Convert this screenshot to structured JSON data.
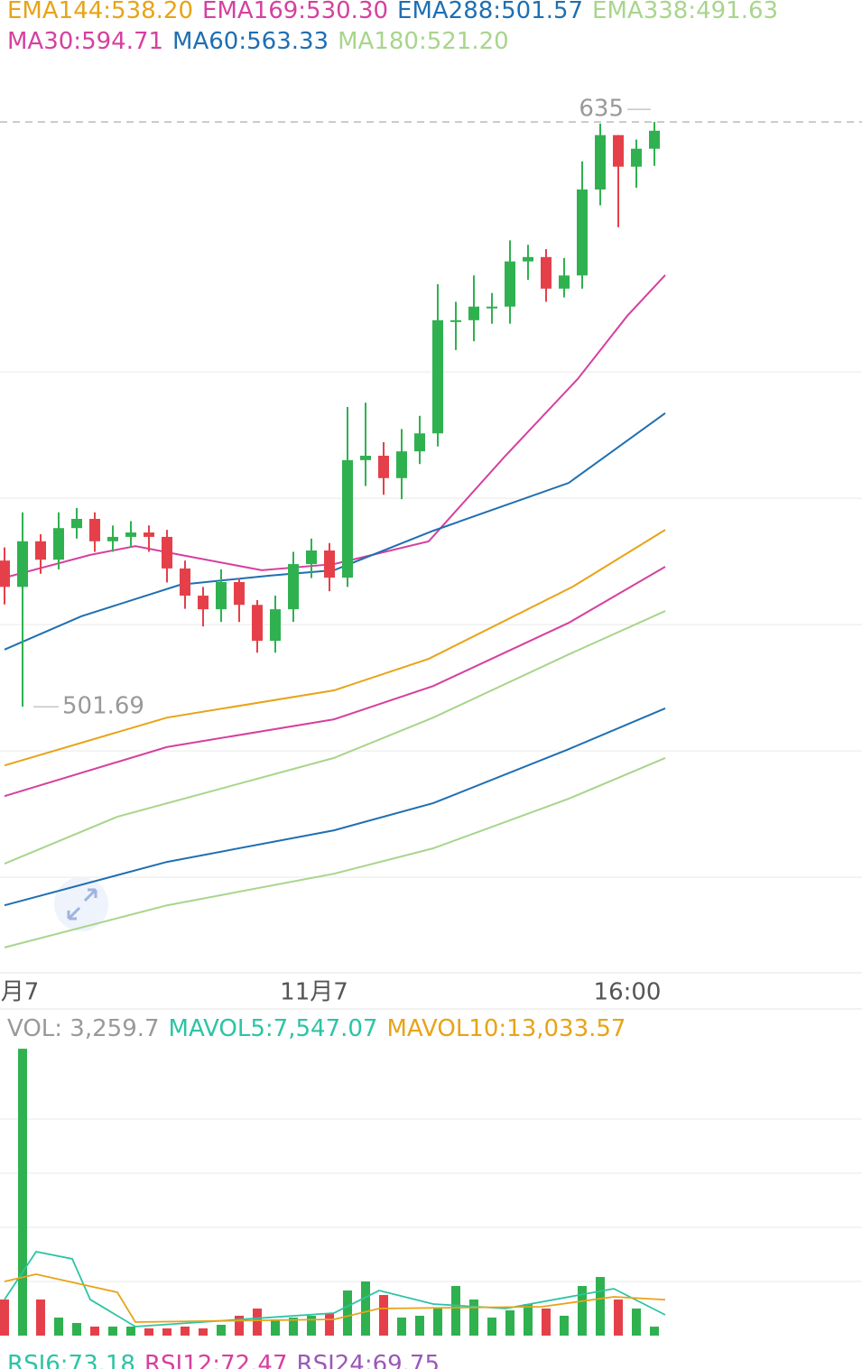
{
  "chart_data": {
    "type": "candlestick",
    "up_color": "#2fb150",
    "down_color": "#e5404a",
    "ylim": [
      440.6,
      648.4
    ],
    "ygrid": [
      578,
      549.2,
      520.4,
      491.6,
      462.8
    ],
    "xlim": [
      -0.25,
      47.5
    ],
    "xticks": [
      {
        "value": 0.85,
        "label": "月7"
      },
      {
        "value": 17.15,
        "label": "11月7"
      },
      {
        "value": 34.5,
        "label": "16:00"
      }
    ],
    "open": [
      535,
      529,
      539.4,
      535.2,
      542.4,
      544.5,
      539.4,
      540.4,
      541.4,
      540.4,
      533.2,
      527,
      523.9,
      530.1,
      524.9,
      516.7,
      523.9,
      534.2,
      537.3,
      531.1,
      557.9,
      558.9,
      553.8,
      559.9,
      564,
      589.8,
      589.8,
      592.9,
      592.9,
      603.2,
      604.2,
      597,
      600,
      619.6,
      632,
      624.8,
      628.9
    ],
    "high": [
      538,
      546,
      541,
      546,
      547,
      546,
      543,
      544,
      543,
      542,
      535,
      529,
      533,
      531,
      526,
      527,
      537,
      540,
      539,
      570,
      571,
      562,
      565,
      568,
      598,
      594,
      600,
      596,
      608,
      607,
      606,
      604,
      626,
      634.63,
      632,
      631,
      635
    ],
    "low": [
      525,
      501.69,
      532,
      533,
      540,
      537,
      537,
      538,
      537,
      530,
      524,
      520,
      521,
      521,
      514,
      514,
      521,
      531,
      528,
      529,
      552,
      550,
      549,
      557,
      561,
      583,
      585,
      589,
      589,
      599,
      594,
      595,
      597,
      616,
      611,
      620,
      625
    ],
    "close": [
      529,
      539.4,
      535.2,
      542.4,
      544.5,
      539.4,
      540.4,
      541.4,
      540.4,
      533.2,
      527,
      523.9,
      530.1,
      524.9,
      516.7,
      523.9,
      534.2,
      537.3,
      531.1,
      557.9,
      558.9,
      553.8,
      559.9,
      564,
      589.8,
      589.8,
      592.9,
      592.9,
      603.2,
      604.2,
      597,
      600,
      619.6,
      632,
      624.8,
      628.9,
      633
    ],
    "lines": [
      {
        "label": "EMA144:538.20",
        "color": "#e8a317",
        "x": [
          0,
          9,
          18.25,
          23.5,
          31.5,
          36.6
        ],
        "values": [
          488.3,
          499.2,
          505.4,
          512.6,
          529.1,
          542.0
        ]
      },
      {
        "label": "EMA169:530.30",
        "color": "#d6409f",
        "x": [
          0,
          9,
          18.25,
          23.75,
          31.25,
          36.6
        ],
        "values": [
          481.3,
          492.5,
          498.8,
          506.4,
          520.8,
          533.6
        ]
      },
      {
        "label": "EMA288:501.57",
        "color": "#1f6fb2",
        "x": [
          0,
          9,
          18.25,
          23.75,
          31.25,
          36.6
        ],
        "values": [
          456.4,
          466.3,
          473.5,
          479.7,
          492.0,
          501.3
        ]
      },
      {
        "label": "EMA338:491.63",
        "color": "#a8d58c",
        "x": [
          0,
          6.25,
          18.25,
          23.75,
          31.25,
          36.6
        ],
        "values": [
          465.9,
          476.6,
          490.0,
          499.2,
          513.6,
          523.5
        ]
      },
      {
        "label": "MA30:594.71",
        "color": "#d6409f",
        "x": [
          0,
          4.75,
          7.25,
          9.75,
          14.25,
          18.25,
          23.5,
          27.75,
          31.75,
          34.5,
          36.6
        ],
        "values": [
          531.1,
          536.3,
          538.3,
          536.3,
          532.8,
          534.2,
          539.4,
          558.9,
          576.4,
          590.8,
          600.1
        ]
      },
      {
        "label": "MA60:563.33",
        "color": "#1f6fb2",
        "x": [
          0,
          4.25,
          9.75,
          14.75,
          18.25,
          23.75,
          31.25,
          36.6
        ],
        "values": [
          514.7,
          522.3,
          529.5,
          531.6,
          532.8,
          541.8,
          552.7,
          568.6
        ]
      },
      {
        "label": "MA180:521.20",
        "color": "#a8d58c",
        "x": [
          0,
          9,
          18.25,
          23.75,
          31.25,
          36.6
        ],
        "values": [
          446.8,
          456.4,
          463.6,
          469.4,
          480.7,
          490.0
        ]
      }
    ],
    "volume": {
      "label": "VOL: 3,259.7",
      "vlim": [
        0,
        105000
      ],
      "vgrid": [
        78750,
        59062.5,
        39375,
        19687.5
      ],
      "values": [
        13120,
        104300,
        13120,
        6560,
        4590,
        3280,
        3280,
        3280,
        2620,
        2620,
        3280,
        2620,
        3940,
        7220,
        9840,
        5900,
        6560,
        7220,
        8200,
        16400,
        19680,
        14760,
        6560,
        7220,
        9840,
        18040,
        13120,
        6560,
        9180,
        11480,
        9840,
        7220,
        18040,
        21320,
        13120,
        9840,
        3259.7
      ],
      "lines": [
        {
          "label": "MAVOL5:7,547.07",
          "color": "#2cc4a4",
          "x": [
            0,
            1.75,
            3.75,
            4.75,
            7.25,
            18.25,
            20.75,
            23.75,
            27.75,
            33.75,
            36.6
          ],
          "values": [
            13120,
            30500,
            27900,
            13100,
            3280,
            8200,
            16400,
            11480,
            9840,
            17060,
            7547.07
          ]
        },
        {
          "label": "MAVOL10:13,033.57",
          "color": "#e8a317",
          "x": [
            0,
            1.75,
            6.25,
            7.25,
            18.25,
            20.75,
            29.75,
            33.75,
            36.6
          ],
          "values": [
            19680,
            22300,
            15740,
            4920,
            5900,
            9840,
            10500,
            14100,
            13033.57
          ]
        }
      ]
    },
    "rsi": [
      {
        "label": "RSI6:73.18",
        "color": "#2cc4a4"
      },
      {
        "label": "RSI12:72.47",
        "color": "#d6409f"
      },
      {
        "label": "RSI24:69.75",
        "color": "#9b59b6"
      }
    ]
  }
}
